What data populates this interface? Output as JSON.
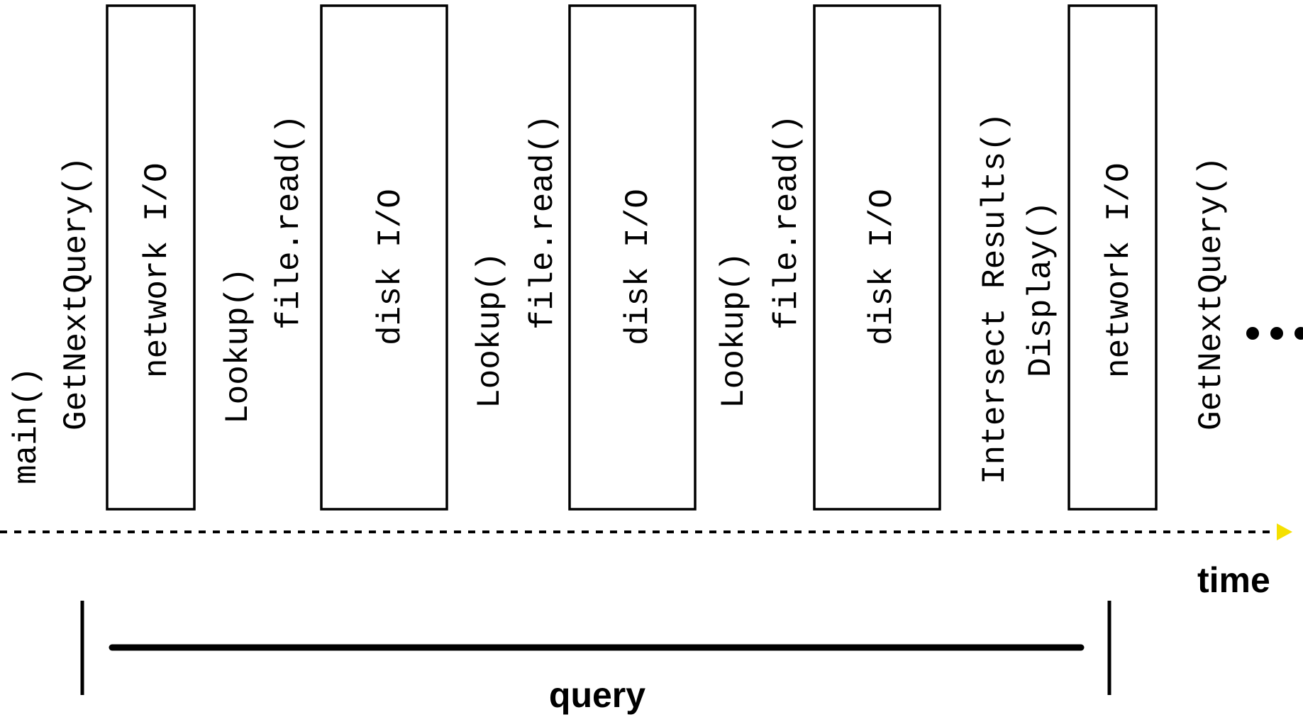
{
  "timeline": {
    "steps": [
      {
        "kind": "text",
        "lines": [
          "main()"
        ]
      },
      {
        "kind": "text",
        "lines": [
          "GetNextQuery()"
        ]
      },
      {
        "kind": "box",
        "label": "network I/O"
      },
      {
        "kind": "text",
        "lines": [
          "Lookup()",
          "file.read()"
        ]
      },
      {
        "kind": "box",
        "label": "disk I/O"
      },
      {
        "kind": "text",
        "lines": [
          "Lookup()",
          "file.read()"
        ]
      },
      {
        "kind": "box",
        "label": "disk I/O"
      },
      {
        "kind": "text",
        "lines": [
          "Lookup()",
          "file.read()"
        ]
      },
      {
        "kind": "box",
        "label": "disk I/O"
      },
      {
        "kind": "text",
        "lines": [
          "Intersect Results()",
          "Display()"
        ]
      },
      {
        "kind": "box",
        "label": "network I/O"
      },
      {
        "kind": "text",
        "lines": [
          "GetNextQuery()"
        ]
      }
    ],
    "continuation": "•••",
    "axis_label": "time",
    "axis_arrow_color": "#f5e000"
  },
  "span": {
    "label": "query"
  }
}
